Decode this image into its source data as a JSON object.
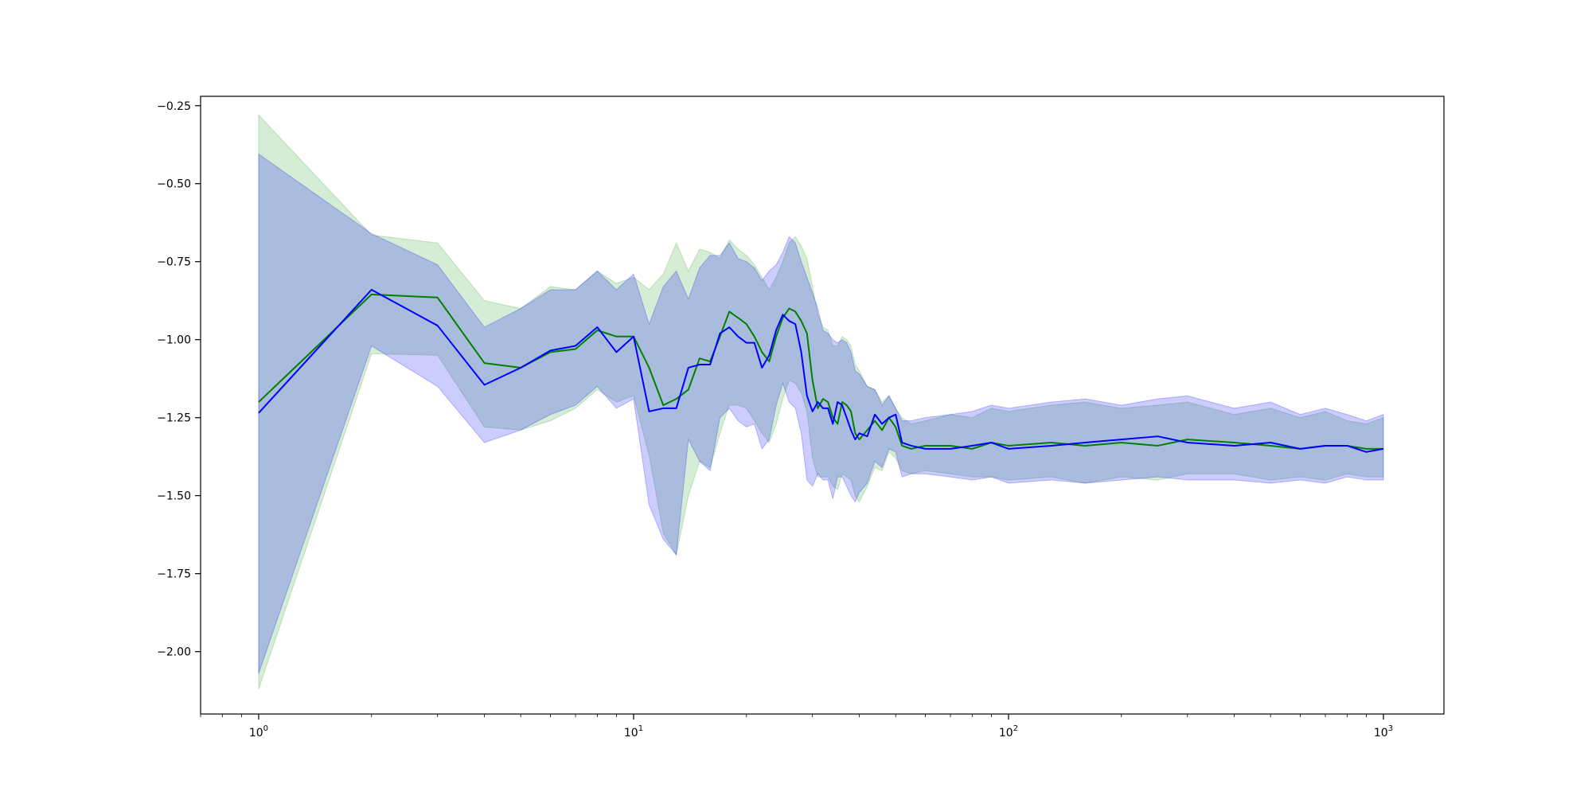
{
  "chart_data": {
    "type": "line",
    "title": "",
    "xlabel": "",
    "ylabel": "",
    "xscale": "log",
    "xlim": [
      0.7,
      1450
    ],
    "ylim": [
      -2.2,
      -0.22
    ],
    "grid": false,
    "legend": "none",
    "x_ticks": [
      {
        "value": 1,
        "base": "10",
        "exp": "0"
      },
      {
        "value": 10,
        "base": "10",
        "exp": "1"
      },
      {
        "value": 100,
        "base": "10",
        "exp": "2"
      },
      {
        "value": 1000,
        "base": "10",
        "exp": "3"
      }
    ],
    "y_ticks": [
      {
        "value": -0.25,
        "label": "−0.25"
      },
      {
        "value": -0.5,
        "label": "−0.50"
      },
      {
        "value": -0.75,
        "label": "−0.75"
      },
      {
        "value": -1.0,
        "label": "−1.00"
      },
      {
        "value": -1.25,
        "label": "−1.25"
      },
      {
        "value": -1.5,
        "label": "−1.50"
      },
      {
        "value": -1.75,
        "label": "−1.75"
      },
      {
        "value": -2.0,
        "label": "−2.00"
      }
    ],
    "series": [
      {
        "color": "#008000",
        "band_color": "#2ca02c",
        "x": [
          1,
          2,
          3,
          4,
          5,
          6,
          7,
          8,
          9,
          10,
          11,
          12,
          13,
          14,
          15,
          16,
          17,
          18,
          19,
          20,
          21,
          22,
          23,
          24,
          25,
          26,
          27,
          28,
          29,
          30,
          31,
          32,
          33,
          34,
          35,
          36,
          37,
          38,
          39,
          40,
          42,
          44,
          46,
          48,
          50,
          52,
          55,
          60,
          70,
          80,
          90,
          100,
          130,
          160,
          200,
          250,
          300,
          400,
          500,
          600,
          700,
          800,
          900,
          1000
        ],
        "y": [
          -1.2,
          -0.855,
          -0.865,
          -1.075,
          -1.09,
          -1.04,
          -1.03,
          -0.97,
          -0.99,
          -0.99,
          -1.09,
          -1.21,
          -1.19,
          -1.16,
          -1.06,
          -1.07,
          -0.99,
          -0.91,
          -0.93,
          -0.95,
          -0.99,
          -1.04,
          -1.07,
          -0.99,
          -0.93,
          -0.9,
          -0.91,
          -0.94,
          -0.98,
          -1.13,
          -1.22,
          -1.19,
          -1.2,
          -1.25,
          -1.27,
          -1.2,
          -1.21,
          -1.23,
          -1.3,
          -1.32,
          -1.29,
          -1.26,
          -1.29,
          -1.25,
          -1.28,
          -1.34,
          -1.35,
          -1.34,
          -1.34,
          -1.35,
          -1.33,
          -1.34,
          -1.33,
          -1.34,
          -1.33,
          -1.34,
          -1.32,
          -1.33,
          -1.34,
          -1.35,
          -1.34,
          -1.34,
          -1.35,
          -1.35
        ],
        "upper": [
          -0.28,
          -0.665,
          -0.69,
          -0.875,
          -0.9,
          -0.83,
          -0.84,
          -0.78,
          -0.82,
          -0.8,
          -0.84,
          -0.79,
          -0.69,
          -0.78,
          -0.71,
          -0.72,
          -0.74,
          -0.68,
          -0.71,
          -0.73,
          -0.76,
          -0.8,
          -0.84,
          -0.8,
          -0.75,
          -0.69,
          -0.67,
          -0.7,
          -0.74,
          -0.83,
          -0.92,
          -0.96,
          -0.97,
          -1.02,
          -1.02,
          -0.99,
          -1.0,
          -1.02,
          -1.08,
          -1.1,
          -1.15,
          -1.16,
          -1.2,
          -1.18,
          -1.22,
          -1.25,
          -1.27,
          -1.26,
          -1.24,
          -1.25,
          -1.22,
          -1.23,
          -1.21,
          -1.2,
          -1.22,
          -1.21,
          -1.2,
          -1.24,
          -1.22,
          -1.25,
          -1.23,
          -1.26,
          -1.27,
          -1.25
        ],
        "lower": [
          -2.12,
          -1.045,
          -1.05,
          -1.28,
          -1.29,
          -1.26,
          -1.22,
          -1.16,
          -1.2,
          -1.18,
          -1.37,
          -1.62,
          -1.69,
          -1.5,
          -1.39,
          -1.41,
          -1.3,
          -1.21,
          -1.21,
          -1.22,
          -1.26,
          -1.3,
          -1.33,
          -1.27,
          -1.19,
          -1.13,
          -1.14,
          -1.17,
          -1.23,
          -1.38,
          -1.44,
          -1.44,
          -1.44,
          -1.47,
          -1.48,
          -1.43,
          -1.44,
          -1.45,
          -1.5,
          -1.52,
          -1.47,
          -1.41,
          -1.42,
          -1.36,
          -1.38,
          -1.42,
          -1.43,
          -1.42,
          -1.43,
          -1.44,
          -1.44,
          -1.45,
          -1.44,
          -1.46,
          -1.44,
          -1.45,
          -1.43,
          -1.43,
          -1.45,
          -1.44,
          -1.45,
          -1.43,
          -1.44,
          -1.44
        ]
      },
      {
        "color": "#0000ff",
        "band_color": "#0000ff",
        "x": [
          1,
          2,
          3,
          4,
          5,
          6,
          7,
          8,
          9,
          10,
          11,
          12,
          13,
          14,
          15,
          16,
          17,
          18,
          19,
          20,
          21,
          22,
          23,
          24,
          25,
          26,
          27,
          28,
          29,
          30,
          31,
          32,
          33,
          34,
          35,
          36,
          37,
          38,
          39,
          40,
          42,
          44,
          46,
          48,
          50,
          52,
          55,
          60,
          70,
          80,
          90,
          100,
          130,
          160,
          200,
          250,
          300,
          400,
          500,
          600,
          700,
          800,
          900,
          1000
        ],
        "y": [
          -1.235,
          -0.84,
          -0.955,
          -1.145,
          -1.09,
          -1.035,
          -1.02,
          -0.96,
          -1.04,
          -0.99,
          -1.23,
          -1.22,
          -1.22,
          -1.09,
          -1.08,
          -1.08,
          -0.98,
          -0.96,
          -0.99,
          -1.01,
          -1.01,
          -1.09,
          -1.05,
          -0.97,
          -0.92,
          -0.94,
          -0.95,
          -1.04,
          -1.18,
          -1.23,
          -1.2,
          -1.22,
          -1.22,
          -1.27,
          -1.2,
          -1.21,
          -1.25,
          -1.29,
          -1.32,
          -1.3,
          -1.31,
          -1.24,
          -1.27,
          -1.25,
          -1.24,
          -1.33,
          -1.34,
          -1.35,
          -1.35,
          -1.34,
          -1.33,
          -1.35,
          -1.34,
          -1.33,
          -1.32,
          -1.31,
          -1.33,
          -1.34,
          -1.33,
          -1.35,
          -1.34,
          -1.34,
          -1.36,
          -1.35
        ],
        "upper": [
          -0.405,
          -0.66,
          -0.76,
          -0.96,
          -0.9,
          -0.84,
          -0.84,
          -0.78,
          -0.84,
          -0.79,
          -0.95,
          -0.83,
          -0.78,
          -0.87,
          -0.77,
          -0.73,
          -0.73,
          -0.69,
          -0.74,
          -0.75,
          -0.77,
          -0.81,
          -0.78,
          -0.76,
          -0.72,
          -0.67,
          -0.69,
          -0.75,
          -0.8,
          -0.85,
          -0.9,
          -0.97,
          -0.98,
          -1.0,
          -1.01,
          -1.0,
          -1.01,
          -1.04,
          -1.1,
          -1.11,
          -1.15,
          -1.16,
          -1.21,
          -1.18,
          -1.22,
          -1.26,
          -1.26,
          -1.25,
          -1.24,
          -1.23,
          -1.21,
          -1.22,
          -1.2,
          -1.19,
          -1.21,
          -1.19,
          -1.18,
          -1.22,
          -1.2,
          -1.24,
          -1.22,
          -1.24,
          -1.26,
          -1.24
        ],
        "lower": [
          -2.07,
          -1.02,
          -1.15,
          -1.33,
          -1.29,
          -1.24,
          -1.21,
          -1.15,
          -1.22,
          -1.19,
          -1.53,
          -1.64,
          -1.69,
          -1.32,
          -1.39,
          -1.42,
          -1.25,
          -1.22,
          -1.26,
          -1.28,
          -1.27,
          -1.35,
          -1.32,
          -1.21,
          -1.14,
          -1.2,
          -1.22,
          -1.3,
          -1.45,
          -1.47,
          -1.43,
          -1.45,
          -1.45,
          -1.51,
          -1.44,
          -1.44,
          -1.47,
          -1.5,
          -1.52,
          -1.49,
          -1.46,
          -1.39,
          -1.41,
          -1.35,
          -1.36,
          -1.44,
          -1.43,
          -1.43,
          -1.44,
          -1.45,
          -1.44,
          -1.46,
          -1.45,
          -1.46,
          -1.45,
          -1.44,
          -1.45,
          -1.45,
          -1.46,
          -1.45,
          -1.46,
          -1.44,
          -1.45,
          -1.45
        ]
      }
    ]
  }
}
